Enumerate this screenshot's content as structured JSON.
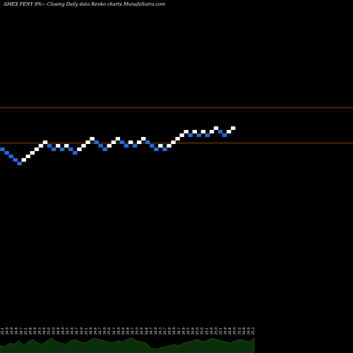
{
  "chart_data": {
    "type": "renko",
    "title": "AMEX  FENY 8%~  Closing Daily data  Renko  charts MunafaSutra.com",
    "colors": {
      "up": "#ffffff",
      "down": "#1e6bdc",
      "line": "#b05a10",
      "volume": "#0b2e0b",
      "volume_line": "#1a6a1a"
    },
    "reference_lines": [
      {
        "name": "upper",
        "value": 25.33
      },
      {
        "name": "lower",
        "value": 24.53
      }
    ],
    "bricks": [
      {
        "dir": "down",
        "value": 24.39
      },
      {
        "dir": "down",
        "value": 24.31
      },
      {
        "dir": "down",
        "value": 24.23
      },
      {
        "dir": "down",
        "value": 24.15
      },
      {
        "dir": "down",
        "value": 24.07
      },
      {
        "dir": "up",
        "value": 24.15
      },
      {
        "dir": "up",
        "value": 24.23
      },
      {
        "dir": "up",
        "value": 24.31
      },
      {
        "dir": "up",
        "value": 24.39
      },
      {
        "dir": "up",
        "value": 24.47
      },
      {
        "dir": "up",
        "value": 24.55
      },
      {
        "dir": "down",
        "value": 24.47
      },
      {
        "dir": "down",
        "value": 24.39
      },
      {
        "dir": "up",
        "value": 24.47
      },
      {
        "dir": "down",
        "value": 24.39
      },
      {
        "dir": "up",
        "value": 24.47
      },
      {
        "dir": "down",
        "value": 24.39
      },
      {
        "dir": "down",
        "value": 24.31
      },
      {
        "dir": "up",
        "value": 24.39
      },
      {
        "dir": "up",
        "value": 24.47
      },
      {
        "dir": "up",
        "value": 24.55
      },
      {
        "dir": "up",
        "value": 24.63
      },
      {
        "dir": "down",
        "value": 24.55
      },
      {
        "dir": "down",
        "value": 24.47
      },
      {
        "dir": "down",
        "value": 24.39
      },
      {
        "dir": "up",
        "value": 24.47
      },
      {
        "dir": "up",
        "value": 24.55
      },
      {
        "dir": "up",
        "value": 24.63
      },
      {
        "dir": "down",
        "value": 24.55
      },
      {
        "dir": "down",
        "value": 24.47
      },
      {
        "dir": "up",
        "value": 24.55
      },
      {
        "dir": "down",
        "value": 24.47
      },
      {
        "dir": "up",
        "value": 24.55
      },
      {
        "dir": "up",
        "value": 24.63
      },
      {
        "dir": "down",
        "value": 24.55
      },
      {
        "dir": "down",
        "value": 24.47
      },
      {
        "dir": "down",
        "value": 24.39
      },
      {
        "dir": "up",
        "value": 24.47
      },
      {
        "dir": "down",
        "value": 24.39
      },
      {
        "dir": "up",
        "value": 24.47
      },
      {
        "dir": "up",
        "value": 24.55
      },
      {
        "dir": "up",
        "value": 24.63
      },
      {
        "dir": "up",
        "value": 24.71
      },
      {
        "dir": "up",
        "value": 24.79
      },
      {
        "dir": "down",
        "value": 24.71
      },
      {
        "dir": "up",
        "value": 24.79
      },
      {
        "dir": "down",
        "value": 24.71
      },
      {
        "dir": "up",
        "value": 24.79
      },
      {
        "dir": "down",
        "value": 24.71
      },
      {
        "dir": "up",
        "value": 24.79
      },
      {
        "dir": "up",
        "value": 24.87
      },
      {
        "dir": "down",
        "value": 24.79
      },
      {
        "dir": "down",
        "value": 24.71
      },
      {
        "dir": "up",
        "value": 24.79
      },
      {
        "dir": "up",
        "value": 24.87
      }
    ],
    "x_tick_labels": [
      "25.1",
      "24.9",
      "24.9",
      "24.8",
      "24.7",
      "25.1",
      "24.8",
      "24.9",
      "24.5",
      "24.6",
      "25.0",
      "25.0",
      "24.8",
      "24.9",
      "24.5",
      "24.6",
      "24.7",
      "24.9",
      "25.1",
      "24.9",
      "24.6",
      "24.7",
      "24.9",
      "25.0",
      "24.7",
      "24.9",
      "24.6",
      "24.8",
      "24.7",
      "25.0",
      "24.6",
      "24.8",
      "24.7",
      "24.9",
      "24.3",
      "24.7",
      "24.9",
      "24.9",
      "24.7",
      "24.6",
      "24.5",
      "24.6",
      "25.0",
      "25.0",
      "25.1",
      "24.9",
      "25.0",
      "25.1",
      "24.9",
      "24.8",
      "25.0",
      "25.2",
      "24.8",
      "24.9",
      "25.3"
    ],
    "volume": [
      0.3,
      0.25,
      0.4,
      0.35,
      0.5,
      0.3,
      0.45,
      0.55,
      0.4,
      0.35,
      0.5,
      0.6,
      0.45,
      0.4,
      0.35,
      0.5,
      0.55,
      0.45,
      0.4,
      0.5,
      0.6,
      0.55,
      0.5,
      0.45,
      0.4,
      0.5,
      0.45,
      0.55,
      0.6,
      0.5,
      0.45,
      0.4,
      0.2,
      0.15,
      0.2,
      0.25,
      0.3,
      0.35,
      0.3,
      0.4,
      0.45,
      0.5,
      0.55,
      0.45,
      0.5,
      0.6,
      0.55,
      0.5,
      0.45,
      0.4,
      0.5,
      0.55,
      0.5,
      0.45,
      0.6
    ]
  }
}
